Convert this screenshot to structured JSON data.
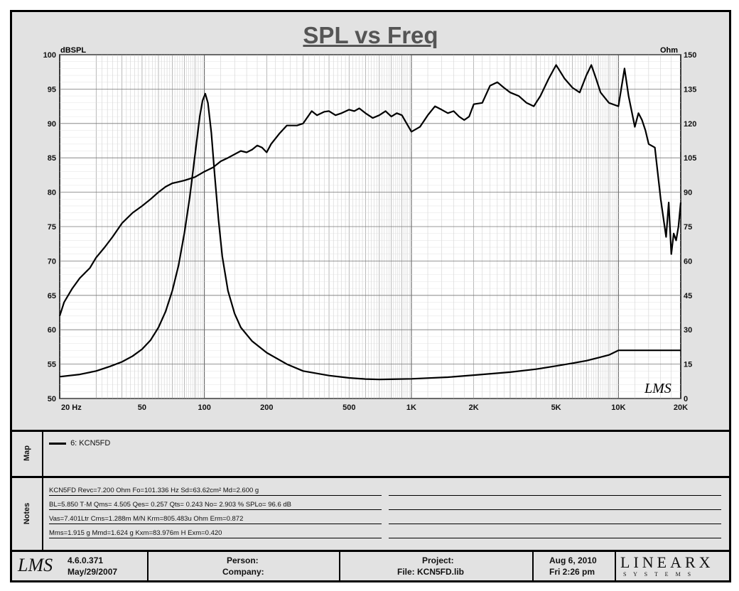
{
  "chart_data": {
    "type": "line",
    "title": "SPL vs Freq",
    "ylabel_left": "dBSPL",
    "ylabel_right": "Ohm",
    "xscale": "log",
    "xlim": [
      20,
      20000
    ],
    "ylim_left": [
      50,
      100
    ],
    "ylim_right": [
      0,
      150
    ],
    "grid": true,
    "x_tick_labels": [
      {
        "v": 20,
        "t": "20  Hz"
      },
      {
        "v": 50,
        "t": "50"
      },
      {
        "v": 100,
        "t": "100"
      },
      {
        "v": 200,
        "t": "200"
      },
      {
        "v": 500,
        "t": "500"
      },
      {
        "v": 1000,
        "t": "1K"
      },
      {
        "v": 2000,
        "t": "2K"
      },
      {
        "v": 5000,
        "t": "5K"
      },
      {
        "v": 10000,
        "t": "10K"
      },
      {
        "v": 20000,
        "t": "20K"
      }
    ],
    "y_left_ticks": [
      100,
      95,
      90,
      85,
      80,
      75,
      70,
      65,
      60,
      55,
      50
    ],
    "y_right_ticks": [
      150,
      135,
      120,
      105,
      90,
      75,
      60,
      45,
      30,
      15,
      0
    ],
    "series": [
      {
        "axis": "left",
        "x": [
          20,
          21,
          23,
          25,
          28,
          30,
          33,
          36,
          40,
          45,
          50,
          55,
          60,
          65,
          70,
          75,
          80,
          90,
          100,
          110,
          120,
          130,
          150,
          160,
          170,
          180,
          190,
          200,
          210,
          230,
          250,
          280,
          300,
          330,
          350,
          380,
          400,
          430,
          460,
          500,
          530,
          560,
          600,
          650,
          700,
          750,
          800,
          850,
          900,
          1000,
          1100,
          1200,
          1300,
          1400,
          1500,
          1600,
          1700,
          1800,
          1900,
          2000,
          2200,
          2400,
          2600,
          2800,
          3000,
          3300,
          3600,
          3900,
          4200,
          4600,
          5000,
          5500,
          6000,
          6500,
          7000,
          7400,
          7800,
          8200,
          9000,
          10000,
          10700,
          11200,
          12000,
          12500,
          13000,
          13500,
          14000,
          15000,
          16000,
          17000,
          17500,
          18000,
          18500,
          19000,
          19500,
          20000
        ],
        "y": [
          62,
          64,
          66,
          67.5,
          69,
          70.5,
          72,
          73.5,
          75.5,
          77,
          78,
          79,
          80,
          80.8,
          81.3,
          81.5,
          81.7,
          82.2,
          83,
          83.6,
          84.5,
          85,
          86,
          85.8,
          86.2,
          86.8,
          86.5,
          85.8,
          87,
          88.5,
          89.7,
          89.7,
          90,
          91.8,
          91.2,
          91.7,
          91.8,
          91.2,
          91.5,
          92,
          91.8,
          92.2,
          91.5,
          90.8,
          91.2,
          91.8,
          91,
          91.5,
          91.2,
          88.8,
          89.5,
          91.2,
          92.5,
          92,
          91.5,
          91.8,
          91,
          90.5,
          91,
          92.8,
          93,
          95.5,
          96,
          95.2,
          94.5,
          94,
          93,
          92.5,
          94,
          96.5,
          98.5,
          96.5,
          95.2,
          94.5,
          97,
          98.5,
          96.5,
          94.5,
          93,
          92.5,
          98,
          94,
          89.5,
          91.5,
          90.5,
          89,
          87,
          86.5,
          79,
          73.5,
          78.5,
          71,
          74,
          73,
          75,
          78.5
        ]
      },
      {
        "axis": "right",
        "x": [
          20,
          25,
          30,
          35,
          40,
          45,
          50,
          55,
          60,
          65,
          70,
          75,
          80,
          85,
          90,
          95,
          98,
          101,
          104,
          108,
          112,
          117,
          122,
          130,
          140,
          150,
          170,
          200,
          250,
          300,
          400,
          500,
          600,
          700,
          800,
          1000,
          1500,
          2000,
          3000,
          4000,
          5000,
          6000,
          7000,
          8000,
          9000,
          10000,
          12000,
          15000,
          20000
        ],
        "y": [
          9.5,
          10.5,
          12,
          14,
          16,
          18.5,
          21.5,
          25.5,
          31,
          38,
          47,
          58,
          72,
          88,
          106,
          123,
          130,
          133,
          129,
          116,
          98,
          78,
          62,
          47,
          37,
          31,
          25,
          20,
          15,
          12,
          10,
          9,
          8.5,
          8.3,
          8.4,
          8.6,
          9.3,
          10.2,
          11.5,
          12.8,
          14.2,
          15.4,
          16.5,
          17.8,
          19,
          21,
          21,
          21,
          21
        ]
      }
    ]
  },
  "map": {
    "label": "Map",
    "entry": "6: KCN5FD"
  },
  "notes": {
    "label": "Notes",
    "lines": [
      "KCN5FD Revc=7.200 Ohm  Fo=101.336 Hz  Sd=63.62cm² Md=2.600 g",
      "BL=5.850 T·M  Qms= 4.505  Qes= 0.257  Qts= 0.243  No= 2.903 %  SPLo= 96.6 dB",
      "Vas=7.401Ltr Cms=1.288m M/N  Krm=805.483u Ohm   Erm=0.872",
      "Mms=1.915 g  Mmd=1.624 g  Kxm=83.976m H  Exm=0.420"
    ]
  },
  "chart_logo": "LMS",
  "footer": {
    "logo": "LMS",
    "version": "4.6.0.371",
    "version_date": "May/29/2007",
    "person_label": "Person:",
    "company_label": "Company:",
    "project_label": "Project:",
    "file_label": "File: KCN5FD.lib",
    "date": "Aug  6, 2010",
    "time": "Fri  2:26 pm",
    "brand": "LINEARX",
    "brand_sub": "S Y S T E M S"
  }
}
